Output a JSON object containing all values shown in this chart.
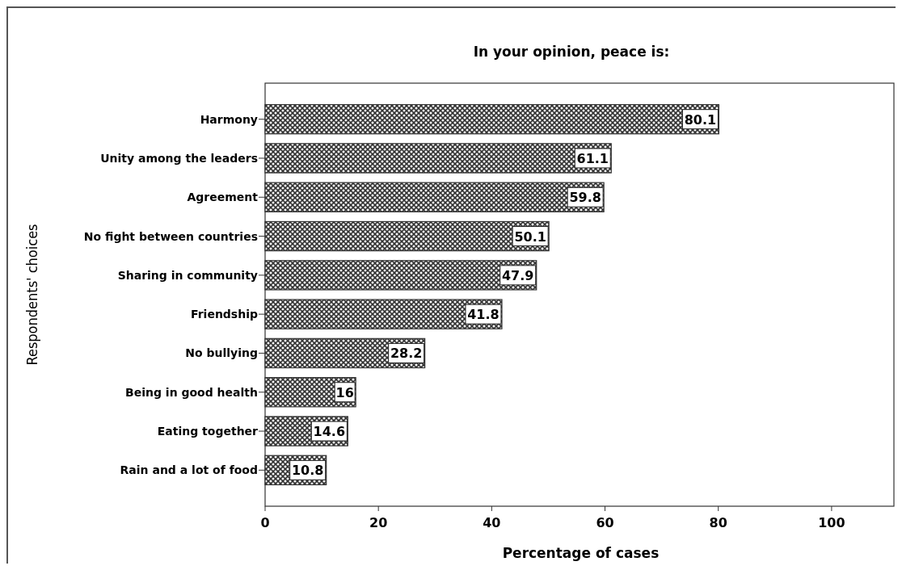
{
  "chart_data": {
    "type": "bar",
    "orientation": "horizontal",
    "title": "In your opinion, peace is:",
    "xlabel": "Percentage of cases",
    "ylabel": "Respondents' choices",
    "categories": [
      "Harmony",
      "Unity among the leaders",
      "Agreement",
      "No fight between countries",
      "Sharing in community",
      "Friendship",
      "No bullying",
      "Being in good health",
      "Eating together",
      "Rain and a lot of food"
    ],
    "values": [
      80.1,
      61.1,
      59.8,
      50.1,
      47.9,
      41.8,
      28.2,
      16,
      14.6,
      10.8
    ],
    "color": "#333333",
    "xlim": [
      0,
      111
    ],
    "xticks": [
      0,
      20,
      40,
      60,
      80,
      100
    ],
    "data_labels": true,
    "grid": false
  }
}
